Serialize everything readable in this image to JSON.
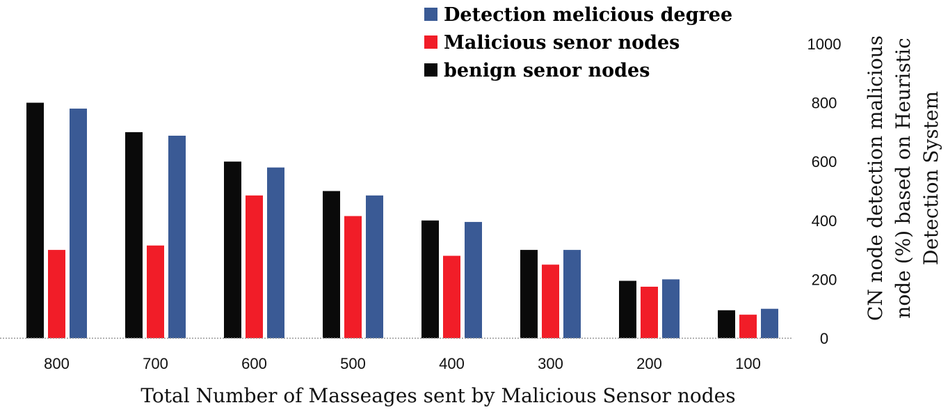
{
  "chart_data": {
    "type": "bar",
    "title": "",
    "xlabel": "Total Number of Masseages sent by Malicious Sensor nodes",
    "ylabel": [
      "CN node detection malicious",
      "node (%) based on Heuristic",
      "Detection System"
    ],
    "ylim": [
      0,
      1000
    ],
    "yticks": [
      "0",
      "200",
      "400",
      "600",
      "800",
      "1000"
    ],
    "y_axis_side": "right",
    "grid": false,
    "legend_position": "top-right",
    "categories": [
      "800",
      "700",
      "600",
      "500",
      "400",
      "300",
      "200",
      "100"
    ],
    "series": [
      {
        "name": "benign senor nodes",
        "color": "#0a0a0a",
        "values": [
          800,
          700,
          600,
          500,
          400,
          300,
          195,
          95
        ]
      },
      {
        "name": "Malicious senor nodes",
        "color": "#f11d28",
        "values": [
          300,
          315,
          485,
          415,
          280,
          250,
          175,
          80
        ]
      },
      {
        "name": "Detection melicious degree",
        "color": "#3a5a95",
        "values": [
          780,
          688,
          580,
          485,
          395,
          300,
          200,
          100
        ]
      }
    ],
    "legend": [
      "Detection melicious degree",
      "Malicious senor nodes",
      "benign senor nodes"
    ]
  }
}
